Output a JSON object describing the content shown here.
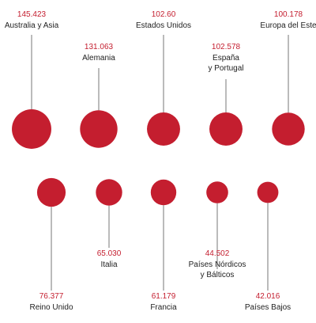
{
  "chart_data": {
    "type": "bubble",
    "categories": [
      "Australia y Asia",
      "Alemania",
      "Estados Unidos",
      "España\ny Portugal",
      "Europa del Este",
      "Reino Unido",
      "Italia",
      "Francia",
      "Países Nórdicos\ny Bálticos",
      "Países Bajos"
    ],
    "values": [
      145.423,
      131.063,
      102.6,
      102.578,
      100.178,
      76.377,
      65.03,
      61.179,
      44.502,
      42.016
    ],
    "value_labels": [
      "145.423",
      "131.063",
      "102.60",
      "102.578",
      "100.178",
      "76.377",
      "65.030",
      "61.179",
      "44.502",
      "42.016"
    ],
    "color": "#c41e2f"
  }
}
